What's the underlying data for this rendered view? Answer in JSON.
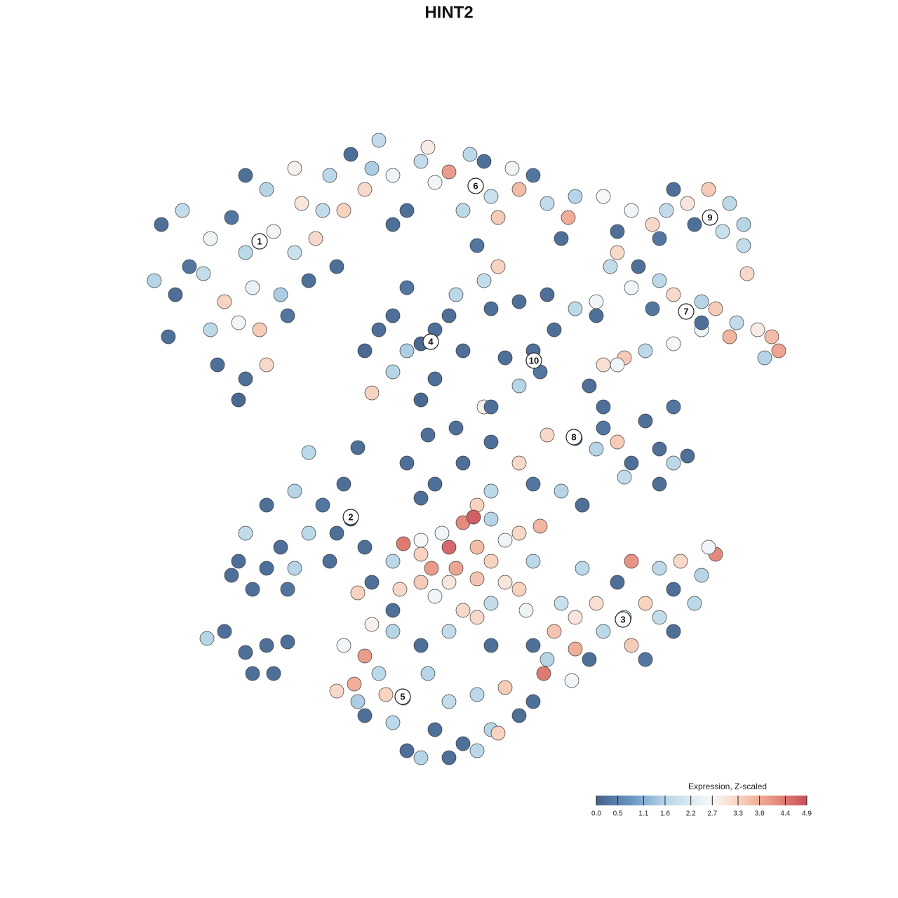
{
  "chart_data": {
    "type": "scatter",
    "title": "HINT2",
    "xlim": [
      0,
      960
    ],
    "ylim": [
      0,
      960
    ],
    "x": [
      50,
      80,
      120,
      150,
      170,
      210,
      240,
      270,
      40,
      70,
      110,
      140,
      180,
      220,
      260,
      120,
      160,
      190,
      230,
      130,
      170,
      200,
      160,
      60,
      90,
      280,
      300,
      200,
      240,
      170,
      250,
      290,
      320,
      340,
      360,
      380,
      400,
      420,
      440,
      460,
      480,
      510,
      520,
      530,
      560,
      580,
      600,
      630,
      640,
      380,
      430,
      490,
      550,
      310,
      350,
      680,
      620,
      500,
      510,
      530,
      420,
      380,
      460,
      340,
      380,
      440,
      480,
      400,
      350,
      360,
      420,
      470,
      400,
      440,
      520,
      560,
      600,
      640,
      580,
      590,
      560,
      610,
      540,
      670,
      510,
      720,
      750,
      770,
      800,
      830,
      860,
      880,
      810,
      760,
      850,
      700,
      880,
      885,
      780,
      690,
      720,
      760,
      780,
      820,
      840,
      870,
      900,
      920,
      930,
      910,
      860,
      820,
      780,
      740,
      710,
      680,
      670,
      750,
      820,
      700,
      730,
      660,
      680,
      700,
      640,
      600,
      670,
      700,
      720,
      760,
      780,
      800,
      740,
      780,
      710,
      760,
      680,
      440,
      480,
      520,
      560,
      580,
      620,
      650,
      520,
      500,
      420,
      400,
      260,
      330,
      470,
      430,
      520,
      320,
      280,
      240,
      200,
      170,
      220,
      260,
      300,
      160,
      200,
      230,
      240,
      150,
      290,
      340,
      180,
      310,
      115,
      140,
      170,
      200,
      180,
      230,
      210,
      395,
      420,
      460,
      435,
      480,
      495,
      500,
      520,
      540,
      560,
      590,
      470,
      500,
      540,
      420,
      390,
      380,
      440,
      480,
      520,
      560,
      570,
      380,
      350,
      420,
      520,
      450,
      580,
      460,
      330,
      710,
      670,
      720,
      760,
      790,
      840,
      820,
      780,
      740,
      760,
      720,
      680,
      640,
      620,
      610,
      640,
      660,
      600,
      580,
      780,
      740,
      810,
      830,
      700,
      650,
      595,
      635,
      395,
      340,
      325,
      300,
      310,
      360,
      370,
      430,
      460,
      440,
      400,
      380,
      340,
      480,
      520,
      530,
      560,
      580,
      500,
      540,
      420,
      460,
      500,
      330,
      420,
      460,
      520,
      500,
      380,
      350
    ],
    "y": [
      780,
      800,
      760,
      790,
      740,
      770,
      740,
      760,
      700,
      680,
      710,
      670,
      690,
      680,
      700,
      630,
      640,
      630,
      650,
      580,
      560,
      580,
      530,
      620,
      720,
      800,
      720,
      830,
      860,
      850,
      810,
      850,
      880,
      830,
      900,
      850,
      800,
      870,
      840,
      855,
      800,
      870,
      820,
      790,
      830,
      850,
      810,
      790,
      820,
      780,
      890,
      880,
      860,
      800,
      860,
      820,
      760,
      750,
      700,
      720,
      610,
      650,
      650,
      600,
      570,
      560,
      600,
      690,
      540,
      630,
      530,
      680,
      600,
      630,
      660,
      670,
      680,
      660,
      600,
      570,
      550,
      630,
      590,
      670,
      520,
      800,
      780,
      800,
      810,
      830,
      810,
      780,
      780,
      760,
      770,
      770,
      750,
      710,
      830,
      720,
      690,
      700,
      680,
      670,
      660,
      640,
      630,
      620,
      600,
      590,
      620,
      630,
      610,
      600,
      590,
      580,
      650,
      660,
      640,
      740,
      720,
      550,
      520,
      580,
      475,
      480,
      460,
      470,
      440,
      460,
      440,
      450,
      500,
      520,
      420,
      410,
      490,
      410,
      440,
      470,
      440,
      410,
      400,
      380,
      400,
      380,
      390,
      440,
      455,
      462,
      490,
      480,
      520,
      360,
      380,
      400,
      380,
      340,
      320,
      340,
      340,
      300,
      290,
      260,
      290,
      280,
      300,
      320,
      260,
      410,
      190,
      200,
      170,
      180,
      140,
      185,
      140,
      325,
      310,
      320,
      290,
      355,
      363,
      320,
      300,
      330,
      340,
      350,
      290,
      275,
      270,
      270,
      260,
      300,
      250,
      230,
      240,
      260,
      230,
      230,
      270,
      330,
      360,
      340,
      300,
      270,
      255,
      220,
      240,
      300,
      290,
      300,
      310,
      280,
      260,
      240,
      220,
      180,
      200,
      220,
      240,
      200,
      175,
      160,
      160,
      180,
      200,
      160,
      240,
      320,
      270,
      290,
      140,
      130,
      105,
      165,
      125,
      115,
      180,
      140,
      110,
      140,
      100,
      60,
      30,
      70,
      80,
      40,
      60,
      55,
      80,
      100,
      110,
      120,
      20,
      20,
      30,
      100,
      180,
      200,
      180,
      220,
      200,
      210
    ],
    "values": [
      0.2,
      1.8,
      2.5,
      0.3,
      1.7,
      2.6,
      1.9,
      3.2,
      1.6,
      0.2,
      1.8,
      3.3,
      2.4,
      1.5,
      0.2,
      1.7,
      2.6,
      3.4,
      0.3,
      0.2,
      0.2,
      3.2,
      0.1,
      0.2,
      0.3,
      1.8,
      0.2,
      1.6,
      2.8,
      0.2,
      3.0,
      1.7,
      0.2,
      3.2,
      1.8,
      2.5,
      0.2,
      1.8,
      2.6,
      4.0,
      1.7,
      0.2,
      1.9,
      3.4,
      3.6,
      0.3,
      1.8,
      3.8,
      1.6,
      0.2,
      2.9,
      1.7,
      2.5,
      3.3,
      1.5,
      2.7,
      0.2,
      0.3,
      1.8,
      3.3,
      0.1,
      0.2,
      0.2,
      0.1,
      1.6,
      0.2,
      0.2,
      0.3,
      3.3,
      0.2,
      0.1,
      1.7,
      1.5,
      0.2,
      0.2,
      0.2,
      0.2,
      1.7,
      0.2,
      0.3,
      1.6,
      0.2,
      0.2,
      2.6,
      2.8,
      2.6,
      3.2,
      1.8,
      3.0,
      3.4,
      1.7,
      1.6,
      0.2,
      0.3,
      1.9,
      0.2,
      1.8,
      3.2,
      0.2,
      1.8,
      2.6,
      1.7,
      3.2,
      1.6,
      3.4,
      1.8,
      2.9,
      3.6,
      3.9,
      1.6,
      3.7,
      2.5,
      2.7,
      1.7,
      3.4,
      3.1,
      0.2,
      0.3,
      0.2,
      3.2,
      0.2,
      0.2,
      0.2,
      2.6,
      0.2,
      3.2,
      1.6,
      3.4,
      0.2,
      0.2,
      1.7,
      0.2,
      0.2,
      0.3,
      1.8,
      0.2,
      0.3,
      0.2,
      0.2,
      0.2,
      3.2,
      0.3,
      1.6,
      0.2,
      1.7,
      3.3,
      0.2,
      0.2,
      1.7,
      0.2,
      0.2,
      0.2,
      0.2,
      0.2,
      0.3,
      1.6,
      0.2,
      1.8,
      0.2,
      1.7,
      0.2,
      0.2,
      0.2,
      0.3,
      1.6,
      0.2,
      0.2,
      0.2,
      0.2,
      0.2,
      1.6,
      0.2,
      0.2,
      0.2,
      0.2,
      0.2,
      0.2,
      4.4,
      3.3,
      4.6,
      4.0,
      4.2,
      4.7,
      3.6,
      3.3,
      2.6,
      3.2,
      3.7,
      3.9,
      3.5,
      3.0,
      3.4,
      3.2,
      1.7,
      2.6,
      3.2,
      1.8,
      3.3,
      2.5,
      0.2,
      0.2,
      2.7,
      1.6,
      2.6,
      1.7,
      3.0,
      3.3,
      1.8,
      3.1,
      4.1,
      1.7,
      3.2,
      4.2,
      1.6,
      0.2,
      3.3,
      1.8,
      3.4,
      1.7,
      3.0,
      1.9,
      3.5,
      3.8,
      0.2,
      1.6,
      0.2,
      0.2,
      0.3,
      1.7,
      2.6,
      0.2,
      1.7,
      4.4,
      2.6,
      1.7,
      4.0,
      3.8,
      3.2,
      2.6,
      1.7,
      3.3,
      1.6,
      1.8,
      0.2,
      0.2,
      1.7,
      0.2,
      0.2,
      1.6,
      3.3,
      0.2,
      0.2,
      1.7,
      3.4,
      1.6,
      0.2,
      1.7,
      1.5,
      0.2,
      1.8,
      0.2,
      3.2,
      1.6,
      2.8
    ],
    "clusters": [
      {
        "label": "1",
        "x": 190,
        "y": 756
      },
      {
        "label": "2",
        "x": 320,
        "y": 363
      },
      {
        "label": "3",
        "x": 708,
        "y": 217
      },
      {
        "label": "4",
        "x": 434,
        "y": 613
      },
      {
        "label": "5",
        "x": 394,
        "y": 107
      },
      {
        "label": "6",
        "x": 498,
        "y": 835
      },
      {
        "label": "7",
        "x": 798,
        "y": 656
      },
      {
        "label": "8",
        "x": 638,
        "y": 477
      },
      {
        "label": "9",
        "x": 832,
        "y": 790
      },
      {
        "label": "10",
        "x": 581,
        "y": 586
      }
    ],
    "colorbar": {
      "title": "Expression, Z-scaled",
      "lim": [
        0,
        4.9
      ],
      "ticks": [
        {
          "value": 0,
          "label": "0.0"
        },
        0.5,
        1.1,
        1.6,
        2.2,
        2.7,
        3.3,
        3.8,
        4.4,
        4.9
      ],
      "colorscale": [
        {
          "value": 0,
          "color": "#46628a"
        },
        {
          "value": 0.8,
          "color": "#6796c3"
        },
        {
          "value": 1.6,
          "color": "#b6d5e7"
        },
        {
          "value": 2.4,
          "color": "#e9f1f6"
        },
        {
          "value": 2.7,
          "color": "#f7f7f7"
        },
        {
          "value": 3.3,
          "color": "#f8d3c0"
        },
        {
          "value": 3.8,
          "color": "#f0ad97"
        },
        {
          "value": 4.4,
          "color": "#de7a72"
        },
        {
          "value": 4.9,
          "color": "#c74e5d"
        }
      ]
    }
  }
}
